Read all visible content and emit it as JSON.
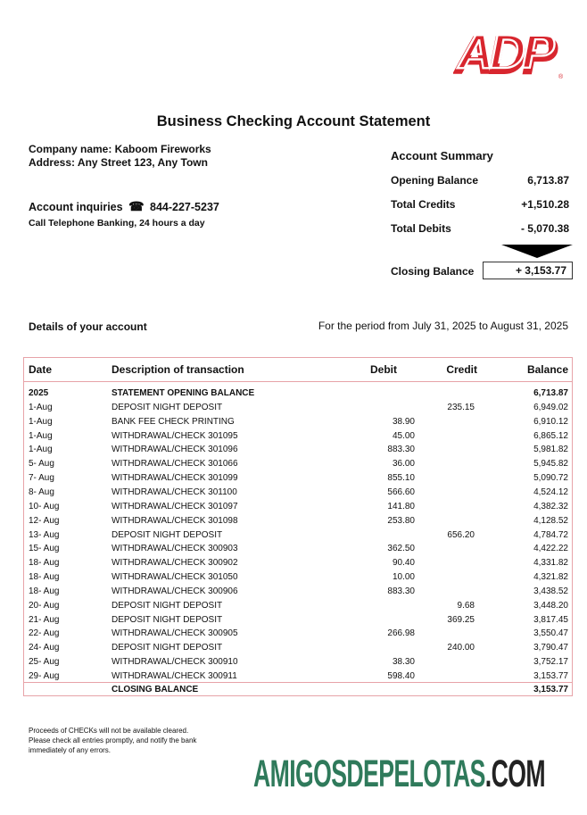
{
  "logo": {
    "text": "ADP",
    "registered": "®",
    "color": "#d8262e"
  },
  "title": "Business Checking Account Statement",
  "company": {
    "name": "Company name: Kaboom Fireworks",
    "address": "Address: Any Street 123, Any Town"
  },
  "inquiries": {
    "label": "Account inquiries",
    "icon": "telephone-icon",
    "phone": "844-227-5237",
    "note": "Call Telephone Banking, 24 hours a day"
  },
  "summary": {
    "title": "Account Summary",
    "rows": [
      {
        "label": "Opening Balance",
        "value": "6,713.87"
      },
      {
        "label": "Total Credits",
        "value": "+1,510.28"
      },
      {
        "label": "Total Debits",
        "value": "- 5,070.38"
      }
    ],
    "closing_label": "Closing Balance",
    "closing_value": "+ 3,153.77"
  },
  "details_label": "Details of your account",
  "period": "For the period from July 31, 2025 to August 31, 2025",
  "table": {
    "headers": [
      "Date",
      "Description of transaction",
      "Debit",
      "Credit",
      "Balance"
    ],
    "rows": [
      [
        "2025",
        "STATEMENT OPENING BALANCE",
        "",
        "",
        "6,713.87"
      ],
      [
        "1-Aug",
        "DEPOSIT NIGHT DEPOSIT",
        "",
        "235.15",
        "6,949.02"
      ],
      [
        "1-Aug",
        "BANK FEE CHECK PRINTING",
        "38.90",
        "",
        "6,910.12"
      ],
      [
        "1-Aug",
        "WITHDRAWAL/CHECK 301095",
        "45.00",
        "",
        "6,865.12"
      ],
      [
        "1-Aug",
        "WITHDRAWAL/CHECK 301096",
        "883.30",
        "",
        "5,981.82"
      ],
      [
        "5- Aug",
        "WITHDRAWAL/CHECK 301066",
        "36.00",
        "",
        "5,945.82"
      ],
      [
        "7- Aug",
        "WITHDRAWAL/CHECK 301099",
        "855.10",
        "",
        "5,090.72"
      ],
      [
        "8- Aug",
        "WITHDRAWAL/CHECK 301100",
        "566.60",
        "",
        "4,524.12"
      ],
      [
        "10- Aug",
        "WITHDRAWAL/CHECK 301097",
        "141.80",
        "",
        "4,382.32"
      ],
      [
        "12- Aug",
        "WITHDRAWAL/CHECK 301098",
        "253.80",
        "",
        "4,128.52"
      ],
      [
        "13- Aug",
        "DEPOSIT NIGHT DEPOSIT",
        "",
        "656.20",
        "4,784.72"
      ],
      [
        "15- Aug",
        "WITHDRAWAL/CHECK 300903",
        "362.50",
        "",
        "4,422.22"
      ],
      [
        "18- Aug",
        "WITHDRAWAL/CHECK 300902",
        "90.40",
        "",
        "4,331.82"
      ],
      [
        "18- Aug",
        "WITHDRAWAL/CHECK 301050",
        "10.00",
        "",
        "4,321.82"
      ],
      [
        "18- Aug",
        "WITHDRAWAL/CHECK 300906",
        "883.30",
        "",
        "3,438.52"
      ],
      [
        "20- Aug",
        "DEPOSIT NIGHT DEPOSIT",
        "",
        "9.68",
        "3,448.20"
      ],
      [
        "21- Aug",
        "DEPOSIT NIGHT DEPOSIT",
        "",
        "369.25",
        "3,817.45"
      ],
      [
        "22- Aug",
        "WITHDRAWAL/CHECK 300905",
        "266.98",
        "",
        "3,550.47"
      ],
      [
        "24- Aug",
        "DEPOSIT NIGHT DEPOSIT",
        "",
        "240.00",
        "3,790.47"
      ],
      [
        "25- Aug",
        "WITHDRAWAL/CHECK 300910",
        "38.30",
        "",
        "3,752.17"
      ],
      [
        "29- Aug",
        "WITHDRAWAL/CHECK 300911",
        "598.40",
        "",
        "3,153.77"
      ]
    ],
    "closing": [
      "",
      "CLOSING BALANCE",
      "",
      "",
      "3,153.77"
    ]
  },
  "note": "Proceeds of CHECKs will not be available cleared. Please check all entries promptly, and notify the bank immediately of any errors.",
  "watermark": {
    "main": "AMIGOSDEPELOTAS",
    "suffix": ".COM",
    "main_color": "#2f7a5b",
    "suffix_color": "#222222"
  }
}
